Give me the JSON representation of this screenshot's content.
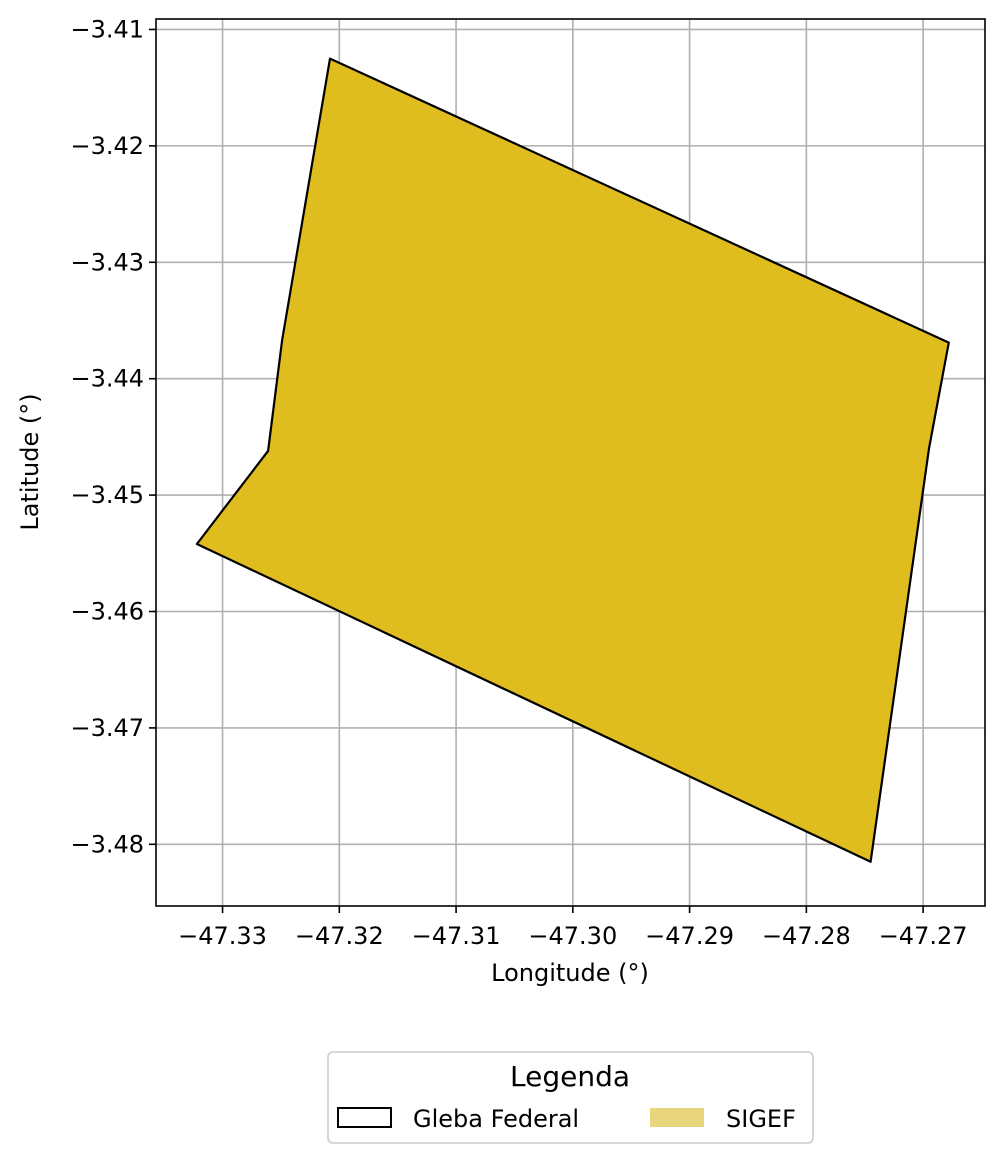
{
  "chart_data": {
    "type": "map",
    "xlabel": "Longitude (°)",
    "ylabel": "Latitude (°)",
    "xlim": [
      -47.3357,
      -47.2647
    ],
    "ylim": [
      -3.4853,
      -3.4091
    ],
    "xticks": [
      -47.33,
      -47.32,
      -47.31,
      -47.3,
      -47.29,
      -47.28,
      -47.27
    ],
    "xtick_labels": [
      "−47.33",
      "−47.32",
      "−47.31",
      "−47.30",
      "−47.29",
      "−47.28",
      "−47.27"
    ],
    "yticks": [
      -3.41,
      -3.42,
      -3.43,
      -3.44,
      -3.45,
      -3.46,
      -3.47,
      -3.48
    ],
    "ytick_labels": [
      "−3.41",
      "−3.42",
      "−3.43",
      "−3.44",
      "−3.45",
      "−3.46",
      "−3.47",
      "−3.48"
    ],
    "grid": true,
    "polygons": [
      {
        "layer": "SIGEF",
        "coordinates": [
          [
            -47.3208,
            -3.4125
          ],
          [
            -47.2678,
            -3.4369
          ],
          [
            -47.2695,
            -3.446
          ],
          [
            -47.2745,
            -3.4815
          ],
          [
            -47.3322,
            -3.4542
          ],
          [
            -47.3261,
            -3.4462
          ],
          [
            -47.3249,
            -3.4367
          ]
        ]
      }
    ],
    "legend": {
      "title": "Legenda",
      "position": "bottom-center",
      "entries": [
        {
          "label": "Gleba Federal",
          "style": "outline",
          "color": "#000000"
        },
        {
          "label": "SIGEF",
          "style": "fill",
          "color": "#e9d57b"
        }
      ]
    },
    "colors": {
      "polygon_fill": "#dfbd1f",
      "polygon_edge": "#000000",
      "grid": "#b0b0b0",
      "legend_sigef": "#e9d57b"
    }
  }
}
